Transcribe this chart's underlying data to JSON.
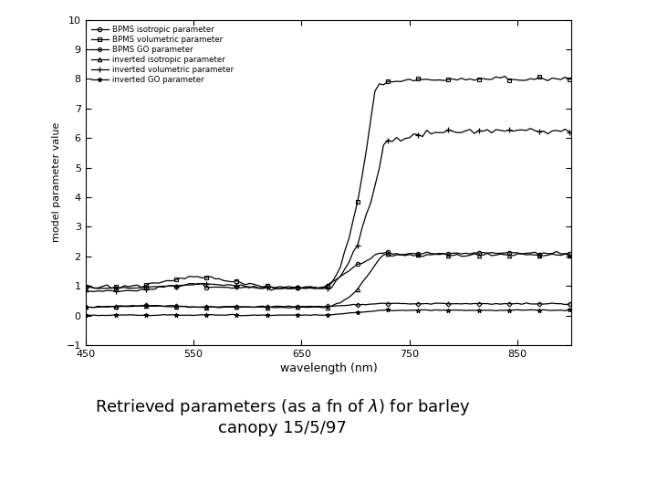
{
  "title_text": "Retrieved parameters (as a fn of λ) for barley\ncanopy 15/5/97",
  "xlabel": "wavelength (nm)",
  "ylabel": "model parameter value",
  "xlim": [
    450,
    900
  ],
  "ylim": [
    -1,
    10
  ],
  "yticks": [
    -1,
    0,
    1,
    2,
    3,
    4,
    5,
    6,
    7,
    8,
    9,
    10
  ],
  "xticks": [
    450,
    550,
    650,
    750,
    850
  ],
  "legend_labels": [
    "BPMS isotropic parameter",
    "BPMS volumetric parameter",
    "BPMS GO parameter",
    "inverted isotropic parameter",
    "inverted volumetric parameter",
    "inverted GO parameter"
  ],
  "background_color": "#ffffff",
  "line_color": "#000000",
  "figure_width": 7.2,
  "figure_height": 5.4,
  "dpi": 100
}
